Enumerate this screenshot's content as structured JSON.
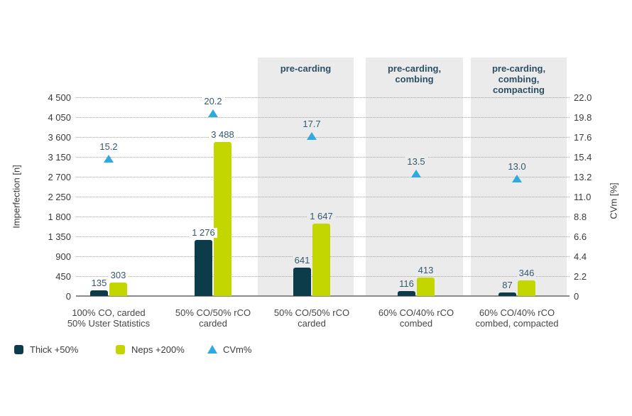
{
  "colors": {
    "thick_bar": "#0c3b49",
    "neps_bar": "#c3d600",
    "cvm_marker": "#2fa9e1",
    "band_bg": "#ebebeb",
    "gridline": "#a6a6a6",
    "axis_line": "#8a8a8a",
    "value_label": "#33596e",
    "band_header": "#2d4f63",
    "tick_label": "#3a3a3a",
    "category_label": "#474747",
    "legend_label": "#3c3c3c",
    "background": "#ffffff"
  },
  "chart_data": {
    "type": "bar",
    "title": "",
    "grid": "dotted-horizontal",
    "legend_position": "bottom-left",
    "left_axis": {
      "label": "Imperfection [n]",
      "max": 4500,
      "min": 0,
      "ticks": [
        "4 500",
        "4 050",
        "3 600",
        "3 150",
        "2 700",
        "2 250",
        "1 800",
        "1 350",
        "900",
        "450",
        "0"
      ]
    },
    "right_axis": {
      "label": "CVm [%]",
      "max": 22,
      "min": 0,
      "ticks": [
        "22.0",
        "19.8",
        "17.6",
        "15.4",
        "13.2",
        "11.0",
        "8.8",
        "6.6",
        "4.4",
        "2.2",
        "0"
      ]
    },
    "categories": [
      {
        "label_lines": [
          "100% CO, carded",
          "50% Uster Statistics"
        ],
        "band_lines": null,
        "thick": 135,
        "neps": 303,
        "cvm": 15.2,
        "thick_label": "135",
        "neps_label": "303",
        "cvm_label": "15.2"
      },
      {
        "label_lines": [
          "50% CO/50% rCO",
          "carded"
        ],
        "band_lines": null,
        "thick": 1276,
        "neps": 3488,
        "cvm": 20.2,
        "thick_label": "1 276",
        "neps_label": "3 488",
        "cvm_label": "20.2"
      },
      {
        "label_lines": [
          "50% CO/50% rCO",
          "carded"
        ],
        "band_lines": [
          "pre-carding"
        ],
        "thick": 641,
        "neps": 1647,
        "cvm": 17.7,
        "thick_label": "641",
        "neps_label": "1 647",
        "cvm_label": "17.7"
      },
      {
        "label_lines": [
          "60% CO/40% rCO",
          "combed"
        ],
        "band_lines": [
          "pre-carding,",
          "combing"
        ],
        "thick": 116,
        "neps": 413,
        "cvm": 13.5,
        "thick_label": "116",
        "neps_label": "413",
        "cvm_label": "13.5"
      },
      {
        "label_lines": [
          "60% CO/40% rCO",
          "combed, compacted"
        ],
        "band_lines": [
          "pre-carding,",
          "combing,",
          "compacting"
        ],
        "thick": 87,
        "neps": 346,
        "cvm": 13.0,
        "thick_label": "87",
        "neps_label": "346",
        "cvm_label": "13.0"
      }
    ],
    "series": [
      {
        "name": "Thick +50%",
        "axis": "left",
        "type": "bar",
        "values": [
          135,
          1276,
          641,
          116,
          87
        ]
      },
      {
        "name": "Neps +200%",
        "axis": "left",
        "type": "bar",
        "values": [
          303,
          3488,
          1647,
          413,
          346
        ]
      },
      {
        "name": "CVm%",
        "axis": "right",
        "type": "scatter-triangle",
        "values": [
          15.2,
          20.2,
          17.7,
          13.5,
          13.0
        ]
      }
    ],
    "legend": [
      {
        "label": "Thick +50%",
        "marker": "square",
        "color_key": "thick_bar"
      },
      {
        "label": "Neps +200%",
        "marker": "square",
        "color_key": "neps_bar"
      },
      {
        "label": "CVm%",
        "marker": "triangle",
        "color_key": "cvm_marker"
      }
    ]
  }
}
